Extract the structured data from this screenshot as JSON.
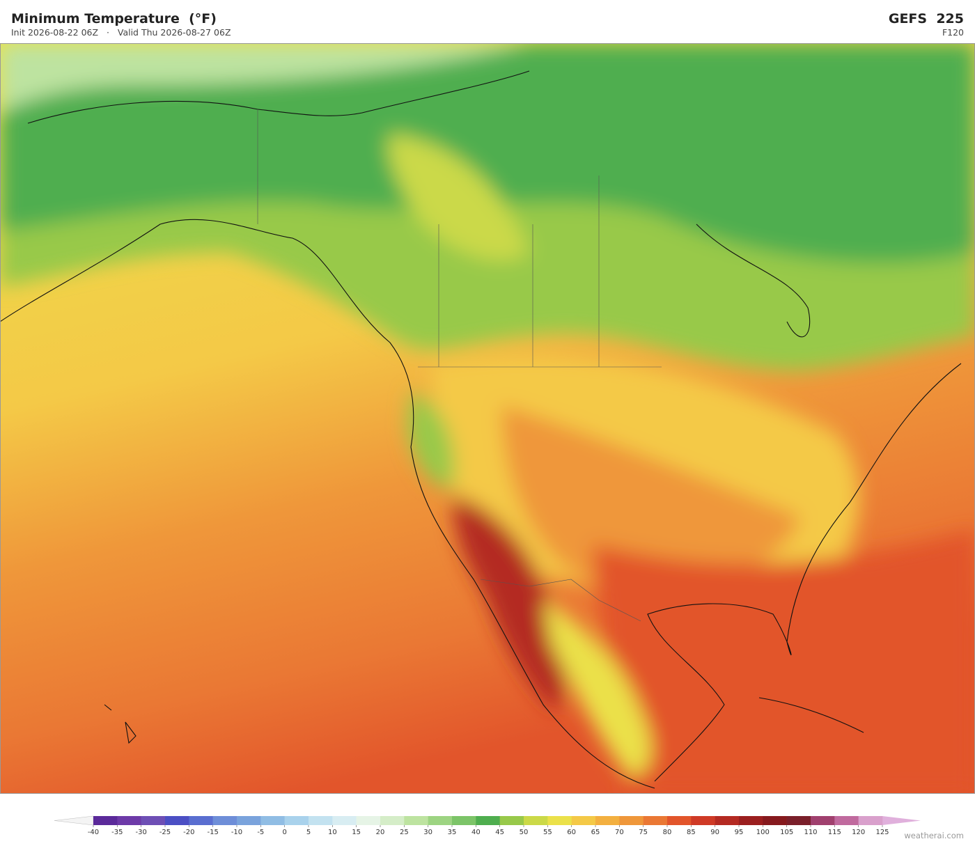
{
  "header": {
    "title": "Minimum Temperature  (°F)",
    "init": "Init 2026-08-22 06Z",
    "separator": "·",
    "valid": "Valid Thu 2026-08-27 06Z",
    "model": "GEFS  225",
    "forecast_hour": "F120"
  },
  "colorbar": {
    "ticks": [
      -40,
      -35,
      -30,
      -25,
      -20,
      -15,
      -10,
      -5,
      0,
      5,
      10,
      15,
      20,
      25,
      30,
      35,
      40,
      45,
      50,
      55,
      60,
      65,
      70,
      75,
      80,
      85,
      90,
      95,
      100,
      105,
      110,
      115,
      120,
      125
    ],
    "colors": [
      "#5b2a9a",
      "#6d3aa8",
      "#6e4fb5",
      "#4b4fc4",
      "#5a6ed0",
      "#6e8ed8",
      "#7aa3dc",
      "#90bde4",
      "#a9d2ec",
      "#c3e2f0",
      "#d8edf2",
      "#e6f4e6",
      "#d5edc8",
      "#bde3a0",
      "#9dd482",
      "#7cc468",
      "#4fae4f",
      "#98c94a",
      "#cbd948",
      "#ebe14a",
      "#f4c947",
      "#f3b040",
      "#ef973a",
      "#ea7834",
      "#e2552b",
      "#cf3a26",
      "#b42a22",
      "#9b1f1f",
      "#861a1e",
      "#7a1f2a",
      "#a0406e",
      "#c06a9e",
      "#d9a0cc"
    ],
    "under_color": "#f4f4f4",
    "over_color": "#e0b0dc"
  },
  "footer": {
    "credit": "weatherai.com"
  }
}
